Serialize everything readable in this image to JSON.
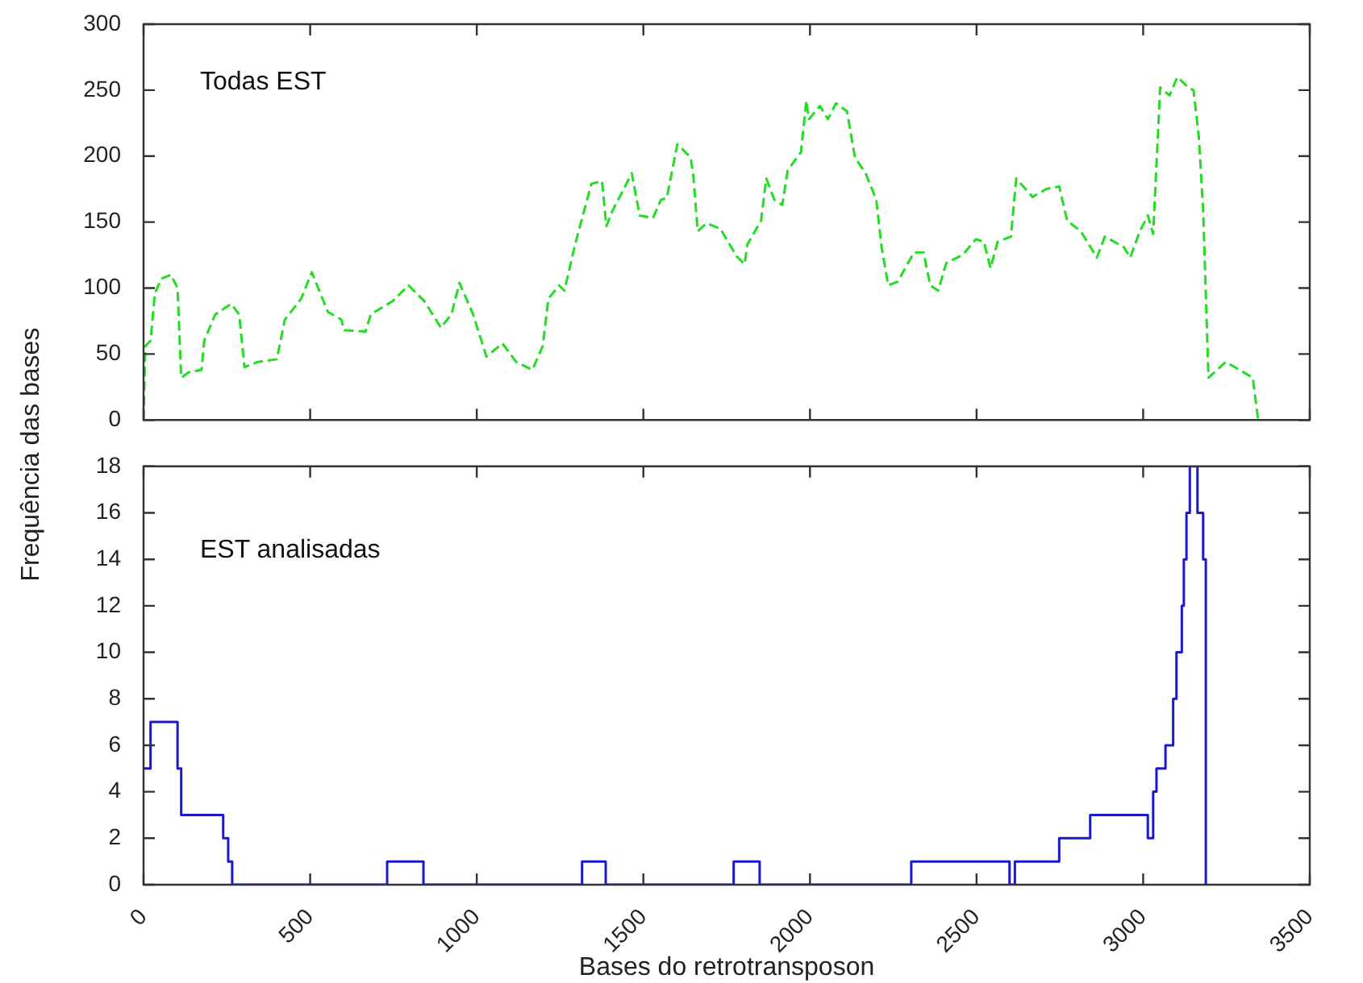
{
  "chart_data": [
    {
      "type": "line",
      "ylabel": "Frequência das bases",
      "annotations": [
        "Todas EST"
      ],
      "line_style": "dashed",
      "xlim": [
        0,
        3500
      ],
      "xticks": [
        0,
        500,
        1000,
        1500,
        2000,
        2500,
        3000,
        3500
      ],
      "ylim": [
        0,
        300
      ],
      "yticks": [
        0,
        50,
        100,
        150,
        200,
        250,
        300
      ],
      "tick_labels": "y",
      "grid": false,
      "series": [
        {
          "color": "#22dd22",
          "x": [
            0,
            5,
            21,
            34,
            53,
            82,
            102,
            113,
            134,
            174,
            182,
            215,
            263,
            287,
            303,
            343,
            400,
            424,
            473,
            505,
            553,
            594,
            602,
            666,
            682,
            747,
            795,
            843,
            892,
            924,
            948,
            989,
            1029,
            1077,
            1118,
            1167,
            1198,
            1215,
            1247,
            1263,
            1295,
            1344,
            1376,
            1389,
            1408,
            1433,
            1465,
            1489,
            1529,
            1553,
            1570,
            1602,
            1642,
            1650,
            1663,
            1690,
            1731,
            1780,
            1804,
            1812,
            1853,
            1869,
            1893,
            1917,
            1933,
            1973,
            1989,
            1997,
            2030,
            2054,
            2078,
            2111,
            2135,
            2167,
            2199,
            2215,
            2235,
            2264,
            2312,
            2341,
            2361,
            2385,
            2409,
            2458,
            2498,
            2522,
            2542,
            2563,
            2603,
            2619,
            2668,
            2708,
            2748,
            2772,
            2813,
            2861,
            2885,
            2942,
            2961,
            2990,
            3014,
            3030,
            3051,
            3079,
            3103,
            3135,
            3151,
            3167,
            3180,
            3196,
            3248,
            3329,
            3345
          ],
          "values": [
            0,
            56,
            60,
            96,
            107,
            110,
            100,
            32,
            36,
            38,
            60,
            80,
            88,
            80,
            40,
            44,
            46,
            76,
            92,
            112,
            82,
            76,
            68,
            67,
            80,
            90,
            102,
            90,
            70,
            80,
            104,
            80,
            48,
            58,
            44,
            38,
            56,
            92,
            102,
            98,
            133,
            179,
            181,
            147,
            159,
            171,
            187,
            155,
            153,
            167,
            168,
            209,
            199,
            185,
            143,
            149,
            145,
            124,
            118,
            133,
            151,
            183,
            167,
            163,
            189,
            203,
            242,
            228,
            238,
            228,
            240,
            234,
            199,
            187,
            167,
            131,
            102,
            105,
            127,
            127,
            102,
            98,
            119,
            125,
            137,
            135,
            115,
            135,
            139,
            183,
            169,
            175,
            177,
            151,
            143,
            123,
            139,
            131,
            123,
            143,
            155,
            141,
            252,
            246,
            260,
            252,
            250,
            215,
            159,
            32,
            44,
            32,
            0
          ]
        }
      ]
    },
    {
      "type": "step",
      "xlabel": "Bases do retrotransposon",
      "annotations": [
        "EST analisadas"
      ],
      "xlim": [
        0,
        3500
      ],
      "xticks": [
        0,
        500,
        1000,
        1500,
        2000,
        2500,
        3000,
        3500
      ],
      "ylim": [
        0,
        18
      ],
      "yticks": [
        0,
        2,
        4,
        6,
        8,
        10,
        12,
        14,
        16,
        18
      ],
      "grid": false,
      "series": [
        {
          "color": "#1a1acc",
          "x": [
            0,
            21,
            102,
            113,
            239,
            254,
            266,
            731,
            840,
            1316,
            1387,
            1771,
            1849,
            2304,
            2599,
            2615,
            2748,
            2841,
            3014,
            3030,
            3040,
            3067,
            3090,
            3100,
            3116,
            3122,
            3130,
            3140,
            3163,
            3180,
            3188
          ],
          "values": [
            5,
            7,
            5,
            3,
            2,
            1,
            0,
            1,
            0,
            1,
            0,
            1,
            0,
            1,
            0,
            1,
            2,
            3,
            2,
            4,
            5,
            6,
            8,
            10,
            12,
            14,
            16,
            18,
            16,
            14,
            0
          ]
        }
      ]
    }
  ]
}
